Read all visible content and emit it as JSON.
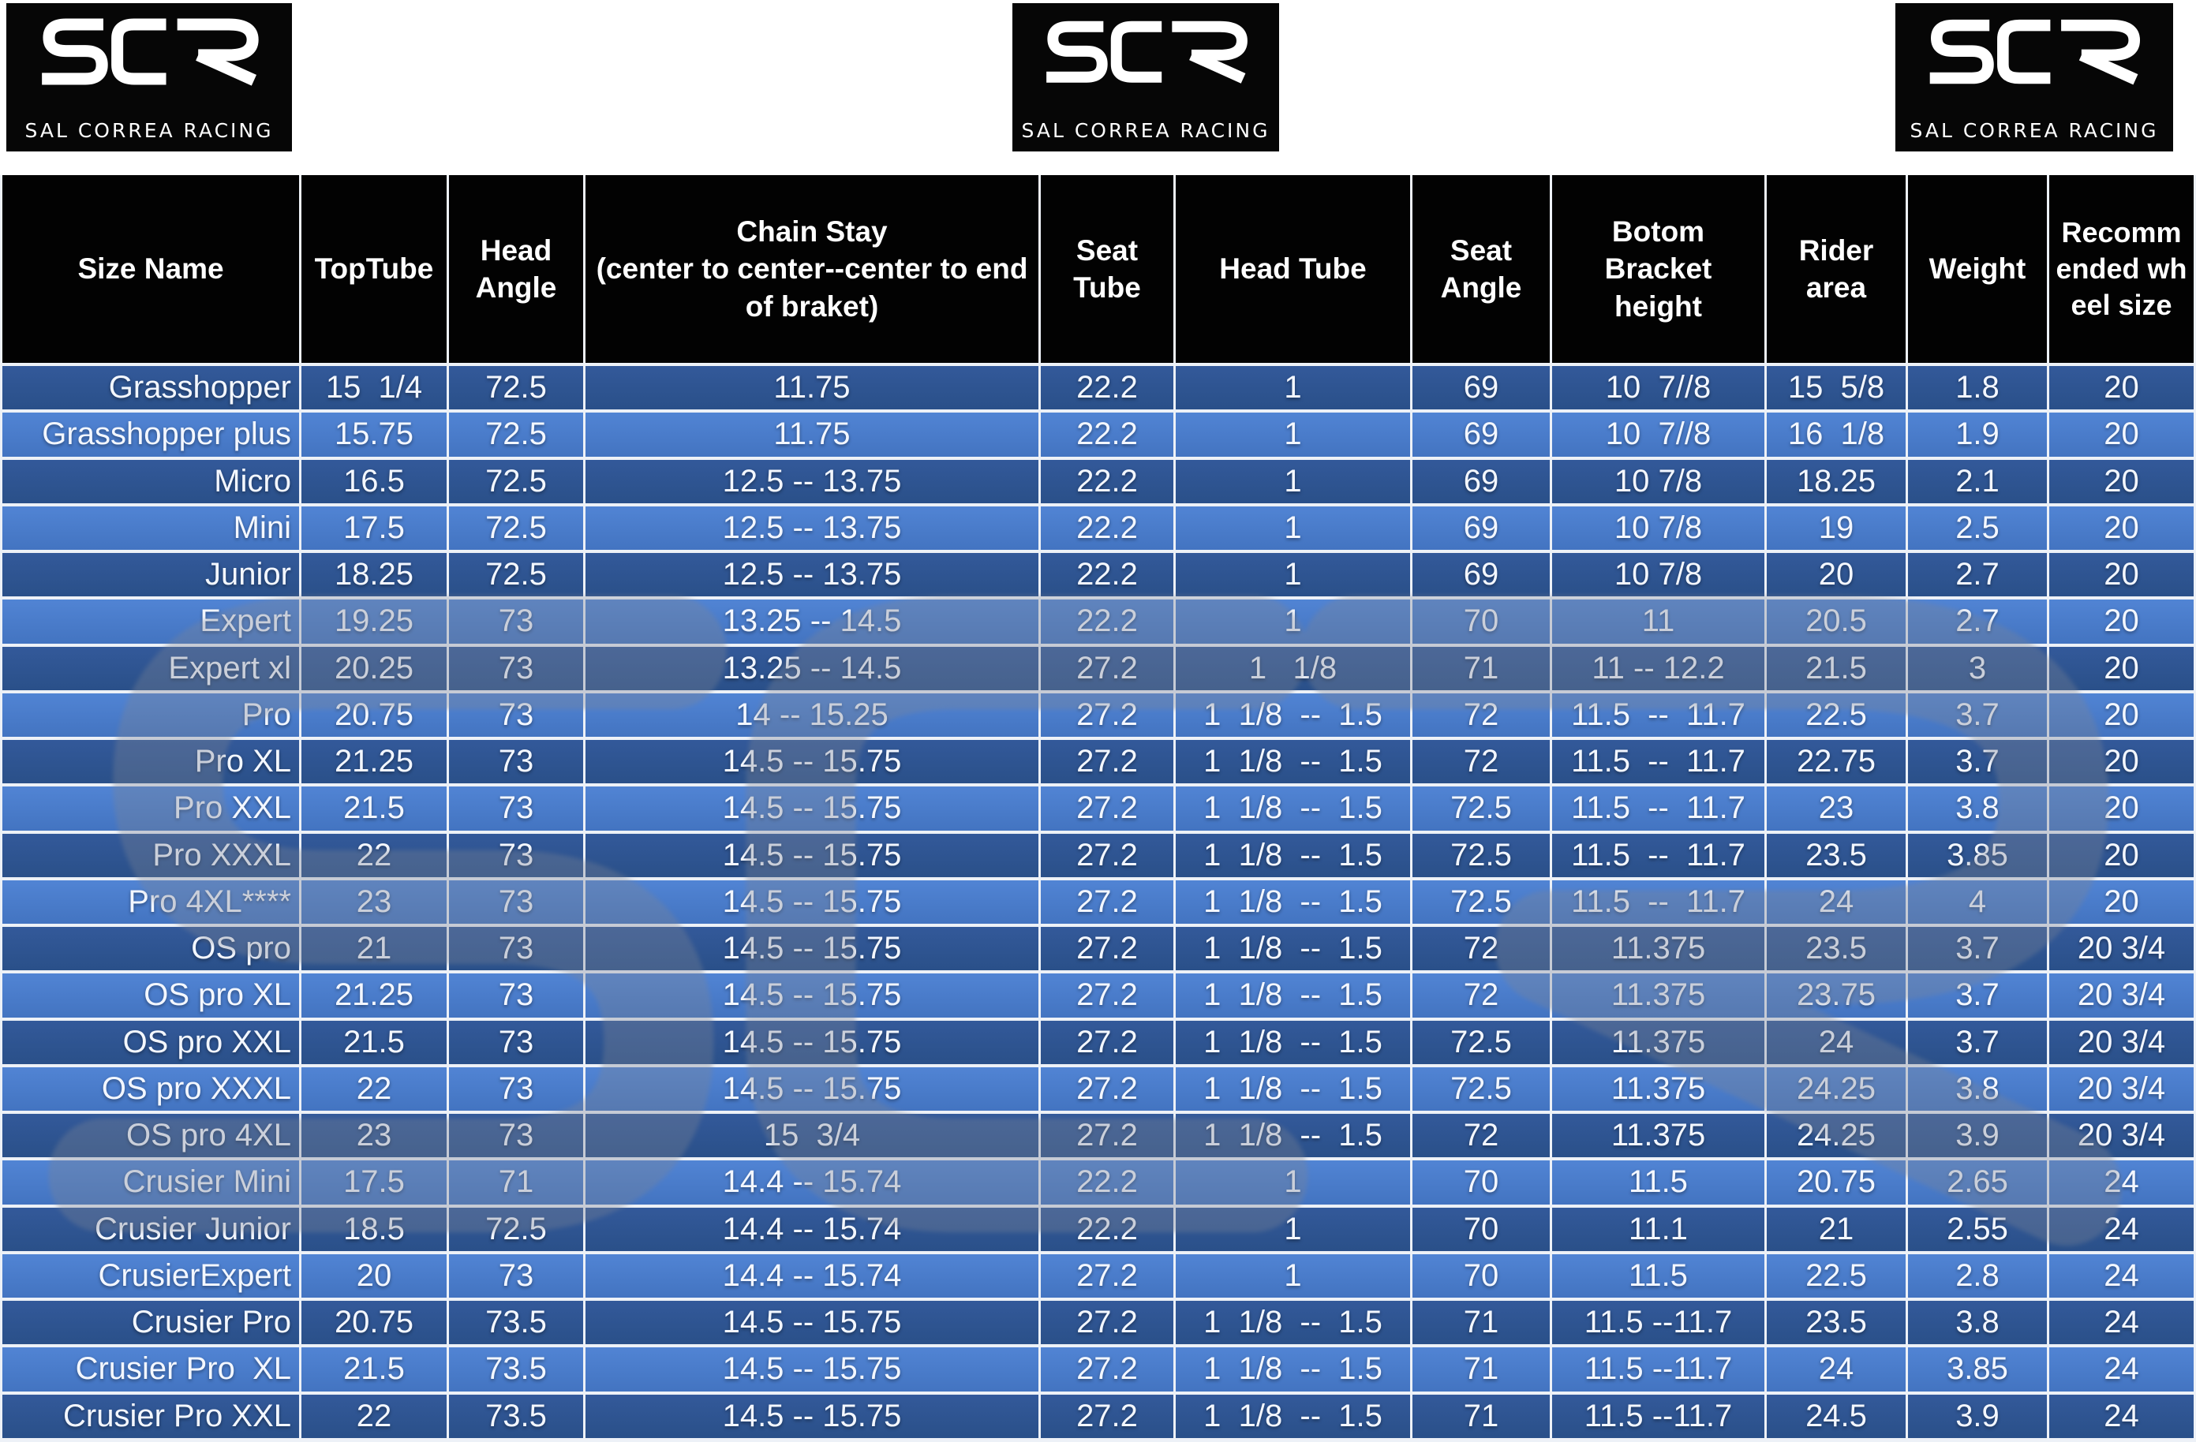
{
  "brand": {
    "name": "SCR",
    "tagline": "SAL CORREA RACING"
  },
  "table": {
    "columns": [
      {
        "id": "size_name",
        "label": "Size Name"
      },
      {
        "id": "top_tube",
        "label": "TopTube"
      },
      {
        "id": "head_angle",
        "label": "Head Angle"
      },
      {
        "id": "chain_stay",
        "label": "Chain Stay",
        "sub": "(center to center--center to end of braket)"
      },
      {
        "id": "seat_tube",
        "label": "Seat Tube"
      },
      {
        "id": "head_tube",
        "label": "Head Tube"
      },
      {
        "id": "seat_angle",
        "label": "Seat Angle"
      },
      {
        "id": "bottom_bracket",
        "label": "Botom Bracket height"
      },
      {
        "id": "rider_area",
        "label": "Rider area"
      },
      {
        "id": "weight",
        "label": "Weight"
      },
      {
        "id": "wheel_size",
        "label": "Recommended wheel size"
      }
    ],
    "rows": [
      [
        "Grasshopper",
        "15  1/4",
        "72.5",
        "11.75",
        "22.2",
        "1",
        "69",
        "10  7//8",
        "15  5/8",
        "1.8",
        "20"
      ],
      [
        "Grasshopper plus",
        "15.75",
        "72.5",
        "11.75",
        "22.2",
        "1",
        "69",
        "10  7//8",
        "16  1/8",
        "1.9",
        "20"
      ],
      [
        "Micro",
        "16.5",
        "72.5",
        "12.5 -- 13.75",
        "22.2",
        "1",
        "69",
        "10 7/8",
        "18.25",
        "2.1",
        "20"
      ],
      [
        "Mini",
        "17.5",
        "72.5",
        "12.5 -- 13.75",
        "22.2",
        "1",
        "69",
        "10 7/8",
        "19",
        "2.5",
        "20"
      ],
      [
        "Junior",
        "18.25",
        "72.5",
        "12.5 -- 13.75",
        "22.2",
        "1",
        "69",
        "10 7/8",
        "20",
        "2.7",
        "20"
      ],
      [
        "Expert",
        "19.25",
        "73",
        "13.25 -- 14.5",
        "22.2",
        "1",
        "70",
        "11",
        "20.5",
        "2.7",
        "20"
      ],
      [
        "Expert xl",
        "20.25",
        "73",
        "13.25 -- 14.5",
        "27.2",
        "1   1/8",
        "71",
        "11 -- 12.2",
        "21.5",
        "3",
        "20"
      ],
      [
        "Pro",
        "20.75",
        "73",
        "14 -- 15.25",
        "27.2",
        "1  1/8  --  1.5",
        "72",
        "11.5  --  11.7",
        "22.5",
        "3.7",
        "20"
      ],
      [
        "Pro XL",
        "21.25",
        "73",
        "14.5 -- 15.75",
        "27.2",
        "1  1/8  --  1.5",
        "72",
        "11.5  --  11.7",
        "22.75",
        "3.7",
        "20"
      ],
      [
        "Pro XXL",
        "21.5",
        "73",
        "14.5 -- 15.75",
        "27.2",
        "1  1/8  --  1.5",
        "72.5",
        "11.5  --  11.7",
        "23",
        "3.8",
        "20"
      ],
      [
        "Pro XXXL",
        "22",
        "73",
        "14.5 -- 15.75",
        "27.2",
        "1  1/8  --  1.5",
        "72.5",
        "11.5  --  11.7",
        "23.5",
        "3.85",
        "20"
      ],
      [
        "Pro 4XL****",
        "23",
        "73",
        "14.5 -- 15.75",
        "27.2",
        "1  1/8  --  1.5",
        "72.5",
        "11.5  --  11.7",
        "24",
        "4",
        "20"
      ],
      [
        "OS pro",
        "21",
        "73",
        "14.5 -- 15.75",
        "27.2",
        "1  1/8  --  1.5",
        "72",
        "11.375",
        "23.5",
        "3.7",
        "20 3/4"
      ],
      [
        "OS pro XL",
        "21.25",
        "73",
        "14.5 -- 15.75",
        "27.2",
        "1  1/8  --  1.5",
        "72",
        "11.375",
        "23.75",
        "3.7",
        "20 3/4"
      ],
      [
        "OS pro XXL",
        "21.5",
        "73",
        "14.5 -- 15.75",
        "27.2",
        "1  1/8  --  1.5",
        "72.5",
        "11.375",
        "24",
        "3.7",
        "20 3/4"
      ],
      [
        "OS pro XXXL",
        "22",
        "73",
        "14.5 -- 15.75",
        "27.2",
        "1  1/8  --  1.5",
        "72.5",
        "11.375",
        "24.25",
        "3.8",
        "20 3/4"
      ],
      [
        "OS pro 4XL",
        "23",
        "73",
        "15  3/4",
        "27.2",
        "1  1/8  --  1.5",
        "72",
        "11.375",
        "24.25",
        "3.9",
        "20 3/4"
      ],
      [
        "Crusier Mini",
        "17.5",
        "71",
        "14.4 -- 15.74",
        "22.2",
        "1",
        "70",
        "11.5",
        "20.75",
        "2.65",
        "24"
      ],
      [
        "Crusier Junior",
        "18.5",
        "72.5",
        "14.4 -- 15.74",
        "22.2",
        "1",
        "70",
        "11.1",
        "21",
        "2.55",
        "24"
      ],
      [
        "CrusierExpert",
        "20",
        "73",
        "14.4 -- 15.74",
        "27.2",
        "1",
        "70",
        "11.5",
        "22.5",
        "2.8",
        "24"
      ],
      [
        "Crusier Pro",
        "20.75",
        "73.5",
        "14.5 -- 15.75",
        "27.2",
        "1  1/8  --  1.5",
        "71",
        "11.5 --11.7",
        "23.5",
        "3.8",
        "24"
      ],
      [
        "Crusier Pro  XL",
        "21.5",
        "73.5",
        "14.5 -- 15.75",
        "27.2",
        "1  1/8  --  1.5",
        "71",
        "11.5 --11.7",
        "24",
        "3.85",
        "24"
      ],
      [
        "Crusier Pro XXL",
        "22",
        "73.5",
        "14.5 -- 15.75",
        "27.2",
        "1  1/8  --  1.5",
        "71",
        "11.5 --11.7",
        "24.5",
        "3.9",
        "24"
      ]
    ]
  },
  "colors": {
    "row_dark": "#2d5590",
    "row_light": "#4a7cc9",
    "header_bg": "#020202",
    "grid_line": "#edf1f7",
    "cell_text": "#f3f7ff",
    "watermark_gray": "#7d8595"
  }
}
